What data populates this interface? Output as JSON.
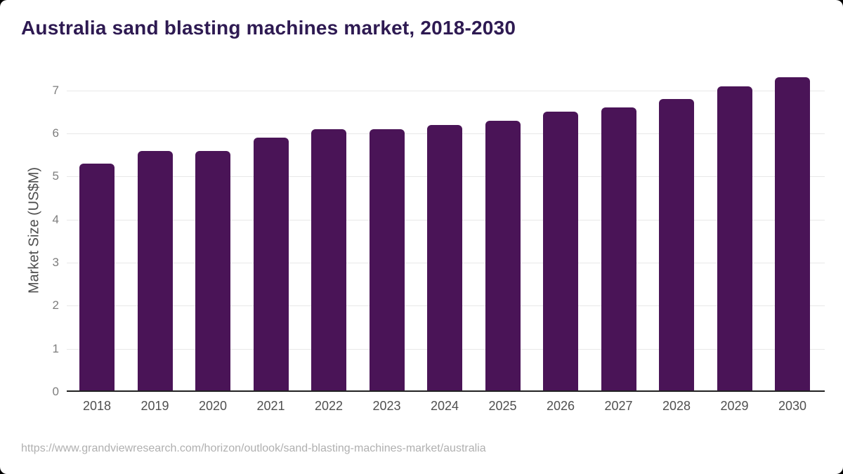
{
  "page": {
    "source_url": "https://www.grandviewresearch.com/horizon/outlook/sand-blasting-machines-market/australia"
  },
  "chart_data": {
    "type": "bar",
    "title": "Australia sand blasting machines market, 2018-2030",
    "xlabel": "",
    "ylabel": "Market Size (US$M)",
    "categories": [
      "2018",
      "2019",
      "2020",
      "2021",
      "2022",
      "2023",
      "2024",
      "2025",
      "2026",
      "2027",
      "2028",
      "2029",
      "2030"
    ],
    "values": [
      5.3,
      5.6,
      5.6,
      5.9,
      6.1,
      6.1,
      6.2,
      6.3,
      6.5,
      6.6,
      6.8,
      7.1,
      7.3
    ],
    "yticks": [
      0,
      1,
      2,
      3,
      4,
      5,
      6,
      7
    ],
    "ylim": [
      0,
      7.42
    ],
    "grid": "horizontal",
    "legend": "none",
    "colors": {
      "bar": "#4a1457",
      "title": "#2e1a52",
      "grid": "#e8e8e8",
      "axis": "#222222",
      "ytick": "#7d7d7d",
      "xtick": "#4f4f4f",
      "ylabel": "#4d4d4d",
      "source": "#b0b0b0"
    }
  }
}
